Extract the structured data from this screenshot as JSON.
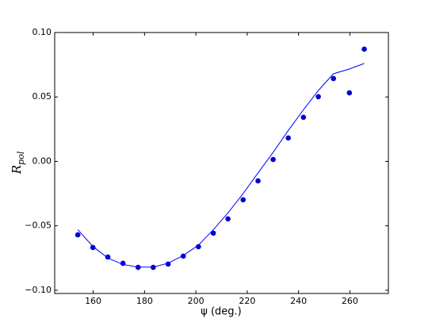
{
  "chart_data": {
    "type": "scatter",
    "xlabel": "ψ (deg.)",
    "ylabel": "R",
    "ylabel_sub": "pol",
    "x": [
      154.0,
      159.9,
      165.7,
      171.6,
      177.5,
      183.4,
      189.2,
      195.1,
      201.0,
      206.8,
      212.5,
      218.4,
      224.2,
      230.1,
      236.0,
      241.9,
      247.7,
      253.6,
      259.8,
      265.6
    ],
    "series": [
      {
        "type": "scatter",
        "color": "#0000cc",
        "values": [
          -0.057,
          -0.0668,
          -0.0742,
          -0.0791,
          -0.0822,
          -0.0822,
          -0.0797,
          -0.0735,
          -0.0662,
          -0.0557,
          -0.0446,
          -0.0298,
          -0.0151,
          0.0015,
          0.0182,
          0.0342,
          0.0502,
          0.0643,
          0.0532,
          0.0871
        ]
      },
      {
        "type": "line",
        "color": "#0000ff",
        "values": [
          -0.053,
          -0.066,
          -0.075,
          -0.08,
          -0.082,
          -0.082,
          -0.079,
          -0.073,
          -0.065,
          -0.053,
          -0.04,
          -0.025,
          -0.009,
          0.007,
          0.024,
          0.04,
          0.055,
          0.068,
          0.0717,
          0.076
        ]
      }
    ],
    "xlim": [
      145,
      275
    ],
    "xticks": [
      160,
      180,
      200,
      220,
      240,
      260
    ],
    "ylim": [
      -0.1025,
      0.1
    ],
    "yticks": [
      {
        "value": -0.1,
        "label": "−0.10"
      },
      {
        "value": -0.05,
        "label": "−0.05"
      },
      {
        "value": 0,
        "label": "0.00"
      },
      {
        "value": 0.05,
        "label": "0.05"
      },
      {
        "value": 0.1,
        "label": "0.10"
      }
    ],
    "grid": false
  }
}
